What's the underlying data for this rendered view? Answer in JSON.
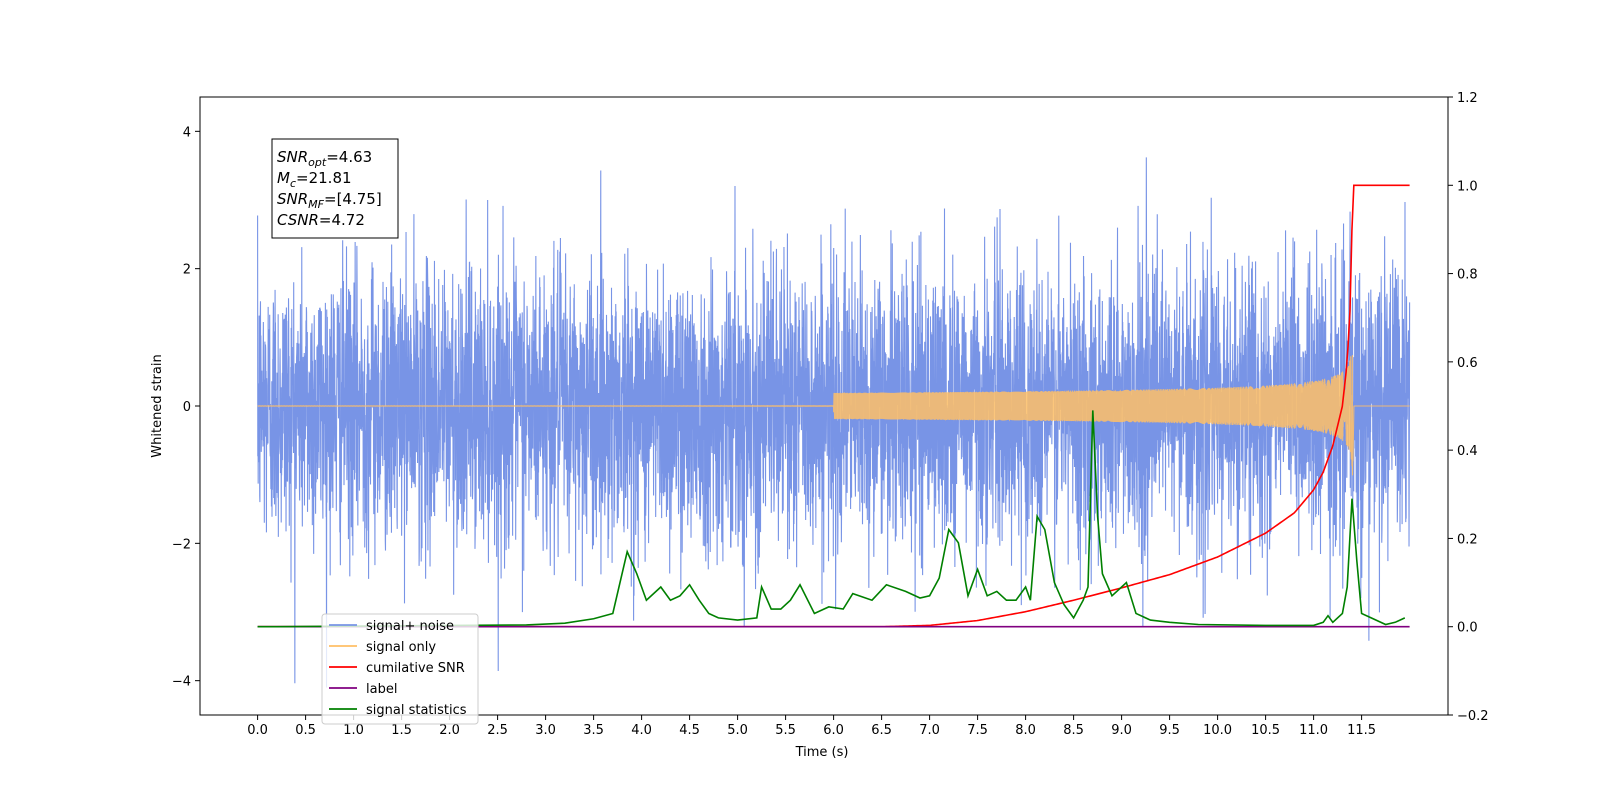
{
  "chart_data": {
    "type": "line",
    "title": "",
    "xlabel": "Time (s)",
    "ylabel": "Whitened strain",
    "y2label": "",
    "xlim": [
      -0.6,
      12.4
    ],
    "ylim": [
      -4.5,
      4.5
    ],
    "y2lim": [
      -0.2,
      1.2
    ],
    "grid": false,
    "legend_position": "lower-left",
    "x_ticks": [
      "0.0",
      "0.5",
      "1.0",
      "1.5",
      "2.0",
      "2.5",
      "3.0",
      "3.5",
      "4.0",
      "4.5",
      "5.0",
      "5.5",
      "6.0",
      "6.5",
      "7.0",
      "7.5",
      "8.0",
      "8.5",
      "9.0",
      "9.5",
      "10.0",
      "10.5",
      "11.0",
      "11.5"
    ],
    "x_tick_values": [
      0,
      0.5,
      1,
      1.5,
      2,
      2.5,
      3,
      3.5,
      4,
      4.5,
      5,
      5.5,
      6,
      6.5,
      7,
      7.5,
      8,
      8.5,
      9,
      9.5,
      10,
      10.5,
      11,
      11.5
    ],
    "y_ticks": [
      "−4",
      "−2",
      "0",
      "2",
      "4"
    ],
    "y_tick_values": [
      -4,
      -2,
      0,
      2,
      4
    ],
    "y2_ticks": [
      "−0.2",
      "0.0",
      "0.2",
      "0.4",
      "0.6",
      "0.8",
      "1.0",
      "1.2"
    ],
    "y2_tick_values": [
      -0.2,
      0,
      0.2,
      0.4,
      0.6,
      0.8,
      1.0,
      1.2
    ],
    "annotation": {
      "lines": [
        {
          "name": "SNR",
          "sub": "opt",
          "value": "=4.63"
        },
        {
          "name": "M",
          "sub": "c",
          "value": "=21.81"
        },
        {
          "name": "SNR",
          "sub": "MF",
          "value": "=[4.75]"
        },
        {
          "name": "CSNR",
          "sub": "",
          "value": "=4.72"
        }
      ]
    },
    "series": [
      {
        "name": "signal+ noise",
        "color": "#7894e6",
        "axis": "left",
        "x_range": [
          0,
          12
        ],
        "noise_std": 1.0,
        "noise_peak": 4.1
      },
      {
        "name": "signal only",
        "color": "#ffbf66",
        "axis": "left",
        "merger_time": 11.41,
        "peak_amplitude": 1.05,
        "tail_end": 11.42
      },
      {
        "name": "cumilative SNR",
        "color": "#ff0000",
        "axis": "right",
        "x": [
          0,
          6.5,
          7.0,
          7.5,
          8.0,
          8.5,
          9.0,
          9.5,
          10.0,
          10.5,
          10.8,
          11.0,
          11.1,
          11.2,
          11.3,
          11.35,
          11.38,
          11.41,
          12.0
        ],
        "y": [
          0,
          0,
          0.003,
          0.014,
          0.034,
          0.06,
          0.088,
          0.118,
          0.158,
          0.212,
          0.258,
          0.31,
          0.35,
          0.41,
          0.5,
          0.6,
          0.72,
          1.0,
          1.0
        ]
      },
      {
        "name": "label",
        "color": "#800080",
        "axis": "right",
        "x": [
          0,
          12
        ],
        "y": [
          0,
          0
        ]
      },
      {
        "name": "signal statistics",
        "color": "#008000",
        "axis": "right",
        "x": [
          0,
          0.2,
          2.8,
          3.2,
          3.5,
          3.7,
          3.85,
          3.95,
          4.05,
          4.2,
          4.3,
          4.4,
          4.5,
          4.6,
          4.7,
          4.8,
          5.0,
          5.2,
          5.25,
          5.35,
          5.45,
          5.55,
          5.65,
          5.8,
          5.95,
          6.1,
          6.2,
          6.4,
          6.55,
          6.75,
          6.9,
          7.0,
          7.1,
          7.2,
          7.3,
          7.4,
          7.5,
          7.6,
          7.7,
          7.8,
          7.9,
          8.0,
          8.05,
          8.12,
          8.2,
          8.3,
          8.4,
          8.5,
          8.6,
          8.65,
          8.7,
          8.75,
          8.8,
          8.9,
          9.0,
          9.05,
          9.15,
          9.3,
          9.5,
          9.8,
          10.5,
          11.0,
          11.1,
          11.15,
          11.2,
          11.3,
          11.35,
          11.4,
          11.45,
          11.5,
          11.6,
          11.75,
          11.85,
          11.95
        ],
        "y": [
          0,
          0,
          0.004,
          0.008,
          0.018,
          0.03,
          0.17,
          0.12,
          0.06,
          0.09,
          0.06,
          0.07,
          0.095,
          0.06,
          0.03,
          0.02,
          0.015,
          0.02,
          0.09,
          0.04,
          0.04,
          0.06,
          0.095,
          0.03,
          0.045,
          0.04,
          0.075,
          0.06,
          0.095,
          0.08,
          0.065,
          0.07,
          0.11,
          0.22,
          0.19,
          0.07,
          0.13,
          0.07,
          0.08,
          0.06,
          0.06,
          0.09,
          0.06,
          0.25,
          0.22,
          0.1,
          0.05,
          0.02,
          0.06,
          0.09,
          0.49,
          0.25,
          0.12,
          0.07,
          0.09,
          0.1,
          0.03,
          0.015,
          0.01,
          0.005,
          0.003,
          0.003,
          0.01,
          0.025,
          0.01,
          0.03,
          0.09,
          0.29,
          0.15,
          0.03,
          0.02,
          0.005,
          0.01,
          0.02
        ]
      }
    ]
  }
}
